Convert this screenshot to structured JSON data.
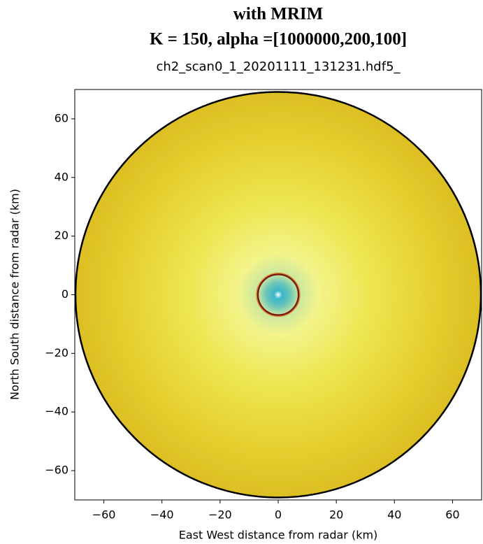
{
  "chart_data": {
    "type": "image",
    "title": [
      "with MRIM",
      "K = 150, alpha =[1000000,200,100]"
    ],
    "subtitle": "ch2_scan0_1_20201111_131231.hdf5_",
    "xlabel": "East West distance from radar (km)",
    "ylabel": "North South distance from radar (km)",
    "xlim": [
      -70,
      70
    ],
    "ylim": [
      -70,
      70
    ],
    "xticks": [
      {
        "value": -60,
        "label": "−60"
      },
      {
        "value": -40,
        "label": "−40"
      },
      {
        "value": -20,
        "label": "−20"
      },
      0,
      20,
      40,
      60
    ],
    "yticks": [
      {
        "value": -60,
        "label": "−60"
      },
      {
        "value": -40,
        "label": "−40"
      },
      {
        "value": -20,
        "label": "−20"
      },
      0,
      20,
      40,
      60
    ]
  }
}
